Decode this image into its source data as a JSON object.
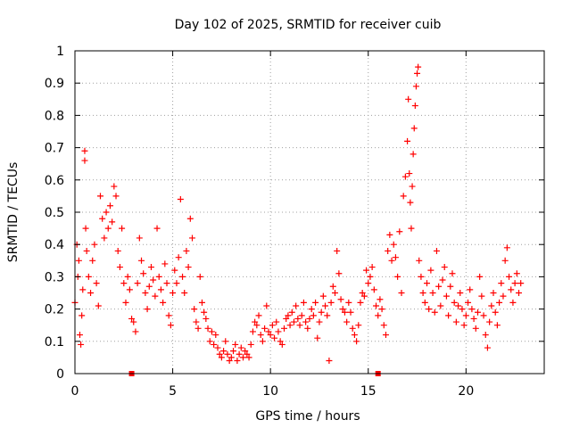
{
  "chart_data": {
    "type": "scatter",
    "title": "Day 102 of 2025, SRMTID for receiver cuib",
    "xlabel": "GPS time / hours",
    "ylabel": "SRMTID / TECUs",
    "xlim": [
      0,
      24
    ],
    "ylim": [
      0,
      1
    ],
    "x_ticks": [
      0,
      5,
      10,
      15,
      20
    ],
    "x_tick_labels": [
      "0",
      "5",
      "10",
      "15",
      "20"
    ],
    "y_ticks": [
      0,
      0.1,
      0.2,
      0.3,
      0.4,
      0.5,
      0.6,
      0.7,
      0.8,
      0.9,
      1
    ],
    "y_tick_labels": [
      "0",
      "0.1",
      "0.2",
      "0.3",
      "0.4",
      "0.5",
      "0.6",
      "0.7",
      "0.8",
      "0.9",
      "1"
    ],
    "grid": true,
    "marker": "+",
    "series_color": "#ff0000",
    "series": [
      {
        "name": "SRMTID",
        "points": [
          [
            0.0,
            0.22
          ],
          [
            0.1,
            0.4
          ],
          [
            0.15,
            0.3
          ],
          [
            0.2,
            0.35
          ],
          [
            0.25,
            0.12
          ],
          [
            0.3,
            0.09
          ],
          [
            0.35,
            0.18
          ],
          [
            0.4,
            0.26
          ],
          [
            0.5,
            0.69
          ],
          [
            0.5,
            0.66
          ],
          [
            0.55,
            0.45
          ],
          [
            0.6,
            0.38
          ],
          [
            0.7,
            0.3
          ],
          [
            0.8,
            0.25
          ],
          [
            0.9,
            0.35
          ],
          [
            1.0,
            0.4
          ],
          [
            1.1,
            0.28
          ],
          [
            1.2,
            0.21
          ],
          [
            1.3,
            0.55
          ],
          [
            1.4,
            0.48
          ],
          [
            1.5,
            0.42
          ],
          [
            1.6,
            0.5
          ],
          [
            1.7,
            0.45
          ],
          [
            1.8,
            0.52
          ],
          [
            1.9,
            0.47
          ],
          [
            2.0,
            0.58
          ],
          [
            2.1,
            0.55
          ],
          [
            2.2,
            0.38
          ],
          [
            2.3,
            0.33
          ],
          [
            2.4,
            0.45
          ],
          [
            2.5,
            0.28
          ],
          [
            2.6,
            0.22
          ],
          [
            2.7,
            0.3
          ],
          [
            2.8,
            0.26
          ],
          [
            2.9,
            0.17
          ],
          [
            3.0,
            0.16
          ],
          [
            3.1,
            0.13
          ],
          [
            3.2,
            0.28
          ],
          [
            3.3,
            0.42
          ],
          [
            3.4,
            0.35
          ],
          [
            3.5,
            0.31
          ],
          [
            3.6,
            0.25
          ],
          [
            3.7,
            0.2
          ],
          [
            3.8,
            0.27
          ],
          [
            3.9,
            0.33
          ],
          [
            4.0,
            0.29
          ],
          [
            4.1,
            0.24
          ],
          [
            4.2,
            0.45
          ],
          [
            4.3,
            0.3
          ],
          [
            4.4,
            0.26
          ],
          [
            4.5,
            0.22
          ],
          [
            4.6,
            0.34
          ],
          [
            4.7,
            0.28
          ],
          [
            4.8,
            0.18
          ],
          [
            4.9,
            0.15
          ],
          [
            5.0,
            0.25
          ],
          [
            5.1,
            0.32
          ],
          [
            5.2,
            0.28
          ],
          [
            5.3,
            0.36
          ],
          [
            5.4,
            0.54
          ],
          [
            5.5,
            0.3
          ],
          [
            5.6,
            0.25
          ],
          [
            5.7,
            0.38
          ],
          [
            5.8,
            0.33
          ],
          [
            5.9,
            0.48
          ],
          [
            6.0,
            0.42
          ],
          [
            6.1,
            0.2
          ],
          [
            6.2,
            0.16
          ],
          [
            6.3,
            0.14
          ],
          [
            6.4,
            0.3
          ],
          [
            6.5,
            0.22
          ],
          [
            6.6,
            0.19
          ],
          [
            6.7,
            0.17
          ],
          [
            6.8,
            0.14
          ],
          [
            6.9,
            0.1
          ],
          [
            7.0,
            0.13
          ],
          [
            7.1,
            0.09
          ],
          [
            7.2,
            0.12
          ],
          [
            7.3,
            0.08
          ],
          [
            7.4,
            0.06
          ],
          [
            7.5,
            0.05
          ],
          [
            7.6,
            0.07
          ],
          [
            7.7,
            0.1
          ],
          [
            7.8,
            0.06
          ],
          [
            7.9,
            0.04
          ],
          [
            8.0,
            0.05
          ],
          [
            8.1,
            0.07
          ],
          [
            8.2,
            0.09
          ],
          [
            8.3,
            0.04
          ],
          [
            8.4,
            0.06
          ],
          [
            8.5,
            0.08
          ],
          [
            8.6,
            0.05
          ],
          [
            8.7,
            0.07
          ],
          [
            8.8,
            0.06
          ],
          [
            8.9,
            0.05
          ],
          [
            9.0,
            0.09
          ],
          [
            9.1,
            0.13
          ],
          [
            9.2,
            0.16
          ],
          [
            9.3,
            0.15
          ],
          [
            9.4,
            0.18
          ],
          [
            9.5,
            0.12
          ],
          [
            9.6,
            0.1
          ],
          [
            9.7,
            0.14
          ],
          [
            9.8,
            0.21
          ],
          [
            9.9,
            0.13
          ],
          [
            10.0,
            0.12
          ],
          [
            10.1,
            0.15
          ],
          [
            10.2,
            0.11
          ],
          [
            10.3,
            0.16
          ],
          [
            10.4,
            0.13
          ],
          [
            10.5,
            0.1
          ],
          [
            10.6,
            0.09
          ],
          [
            10.7,
            0.14
          ],
          [
            10.8,
            0.17
          ],
          [
            10.9,
            0.18
          ],
          [
            11.0,
            0.15
          ],
          [
            11.1,
            0.19
          ],
          [
            11.2,
            0.16
          ],
          [
            11.3,
            0.21
          ],
          [
            11.4,
            0.17
          ],
          [
            11.5,
            0.15
          ],
          [
            11.6,
            0.18
          ],
          [
            11.7,
            0.22
          ],
          [
            11.8,
            0.16
          ],
          [
            11.9,
            0.14
          ],
          [
            12.0,
            0.17
          ],
          [
            12.1,
            0.2
          ],
          [
            12.2,
            0.18
          ],
          [
            12.3,
            0.22
          ],
          [
            12.4,
            0.11
          ],
          [
            12.5,
            0.16
          ],
          [
            12.6,
            0.19
          ],
          [
            12.7,
            0.24
          ],
          [
            12.8,
            0.21
          ],
          [
            12.9,
            0.18
          ],
          [
            13.0,
            0.04
          ],
          [
            13.1,
            0.22
          ],
          [
            13.2,
            0.27
          ],
          [
            13.3,
            0.25
          ],
          [
            13.4,
            0.38
          ],
          [
            13.5,
            0.31
          ],
          [
            13.6,
            0.23
          ],
          [
            13.7,
            0.2
          ],
          [
            13.8,
            0.19
          ],
          [
            13.9,
            0.16
          ],
          [
            14.0,
            0.22
          ],
          [
            14.1,
            0.19
          ],
          [
            14.2,
            0.14
          ],
          [
            14.3,
            0.12
          ],
          [
            14.4,
            0.1
          ],
          [
            14.5,
            0.15
          ],
          [
            14.6,
            0.22
          ],
          [
            14.7,
            0.25
          ],
          [
            14.8,
            0.24
          ],
          [
            14.9,
            0.32
          ],
          [
            15.0,
            0.28
          ],
          [
            15.1,
            0.3
          ],
          [
            15.2,
            0.33
          ],
          [
            15.3,
            0.26
          ],
          [
            15.4,
            0.21
          ],
          [
            15.5,
            0.18
          ],
          [
            15.6,
            0.23
          ],
          [
            15.7,
            0.2
          ],
          [
            15.8,
            0.15
          ],
          [
            15.9,
            0.12
          ],
          [
            16.0,
            0.38
          ],
          [
            16.1,
            0.43
          ],
          [
            16.2,
            0.35
          ],
          [
            16.3,
            0.4
          ],
          [
            16.4,
            0.36
          ],
          [
            16.5,
            0.3
          ],
          [
            16.6,
            0.44
          ],
          [
            16.7,
            0.25
          ],
          [
            16.8,
            0.55
          ],
          [
            16.9,
            0.61
          ],
          [
            17.0,
            0.72
          ],
          [
            17.05,
            0.85
          ],
          [
            17.1,
            0.62
          ],
          [
            17.15,
            0.53
          ],
          [
            17.2,
            0.45
          ],
          [
            17.25,
            0.58
          ],
          [
            17.3,
            0.68
          ],
          [
            17.35,
            0.76
          ],
          [
            17.4,
            0.83
          ],
          [
            17.45,
            0.89
          ],
          [
            17.5,
            0.93
          ],
          [
            17.55,
            0.95
          ],
          [
            17.6,
            0.35
          ],
          [
            17.7,
            0.3
          ],
          [
            17.8,
            0.25
          ],
          [
            17.9,
            0.22
          ],
          [
            18.0,
            0.28
          ],
          [
            18.1,
            0.2
          ],
          [
            18.2,
            0.32
          ],
          [
            18.3,
            0.25
          ],
          [
            18.4,
            0.19
          ],
          [
            18.5,
            0.38
          ],
          [
            18.6,
            0.27
          ],
          [
            18.7,
            0.21
          ],
          [
            18.8,
            0.29
          ],
          [
            18.9,
            0.33
          ],
          [
            19.0,
            0.24
          ],
          [
            19.1,
            0.18
          ],
          [
            19.2,
            0.27
          ],
          [
            19.3,
            0.31
          ],
          [
            19.4,
            0.22
          ],
          [
            19.5,
            0.16
          ],
          [
            19.6,
            0.21
          ],
          [
            19.7,
            0.25
          ],
          [
            19.8,
            0.2
          ],
          [
            19.9,
            0.15
          ],
          [
            20.0,
            0.18
          ],
          [
            20.1,
            0.22
          ],
          [
            20.2,
            0.26
          ],
          [
            20.3,
            0.2
          ],
          [
            20.4,
            0.17
          ],
          [
            20.5,
            0.14
          ],
          [
            20.6,
            0.19
          ],
          [
            20.7,
            0.3
          ],
          [
            20.8,
            0.24
          ],
          [
            20.9,
            0.18
          ],
          [
            21.0,
            0.12
          ],
          [
            21.1,
            0.08
          ],
          [
            21.2,
            0.16
          ],
          [
            21.3,
            0.21
          ],
          [
            21.4,
            0.25
          ],
          [
            21.5,
            0.19
          ],
          [
            21.6,
            0.15
          ],
          [
            21.7,
            0.22
          ],
          [
            21.8,
            0.28
          ],
          [
            21.9,
            0.24
          ],
          [
            22.0,
            0.35
          ],
          [
            22.1,
            0.39
          ],
          [
            22.2,
            0.3
          ],
          [
            22.3,
            0.26
          ],
          [
            22.4,
            0.22
          ],
          [
            22.5,
            0.28
          ],
          [
            22.6,
            0.31
          ],
          [
            22.7,
            0.25
          ],
          [
            22.8,
            0.28
          ]
        ]
      }
    ],
    "zero_markers": [
      [
        2.9,
        0.0
      ],
      [
        15.5,
        0.0
      ]
    ]
  }
}
